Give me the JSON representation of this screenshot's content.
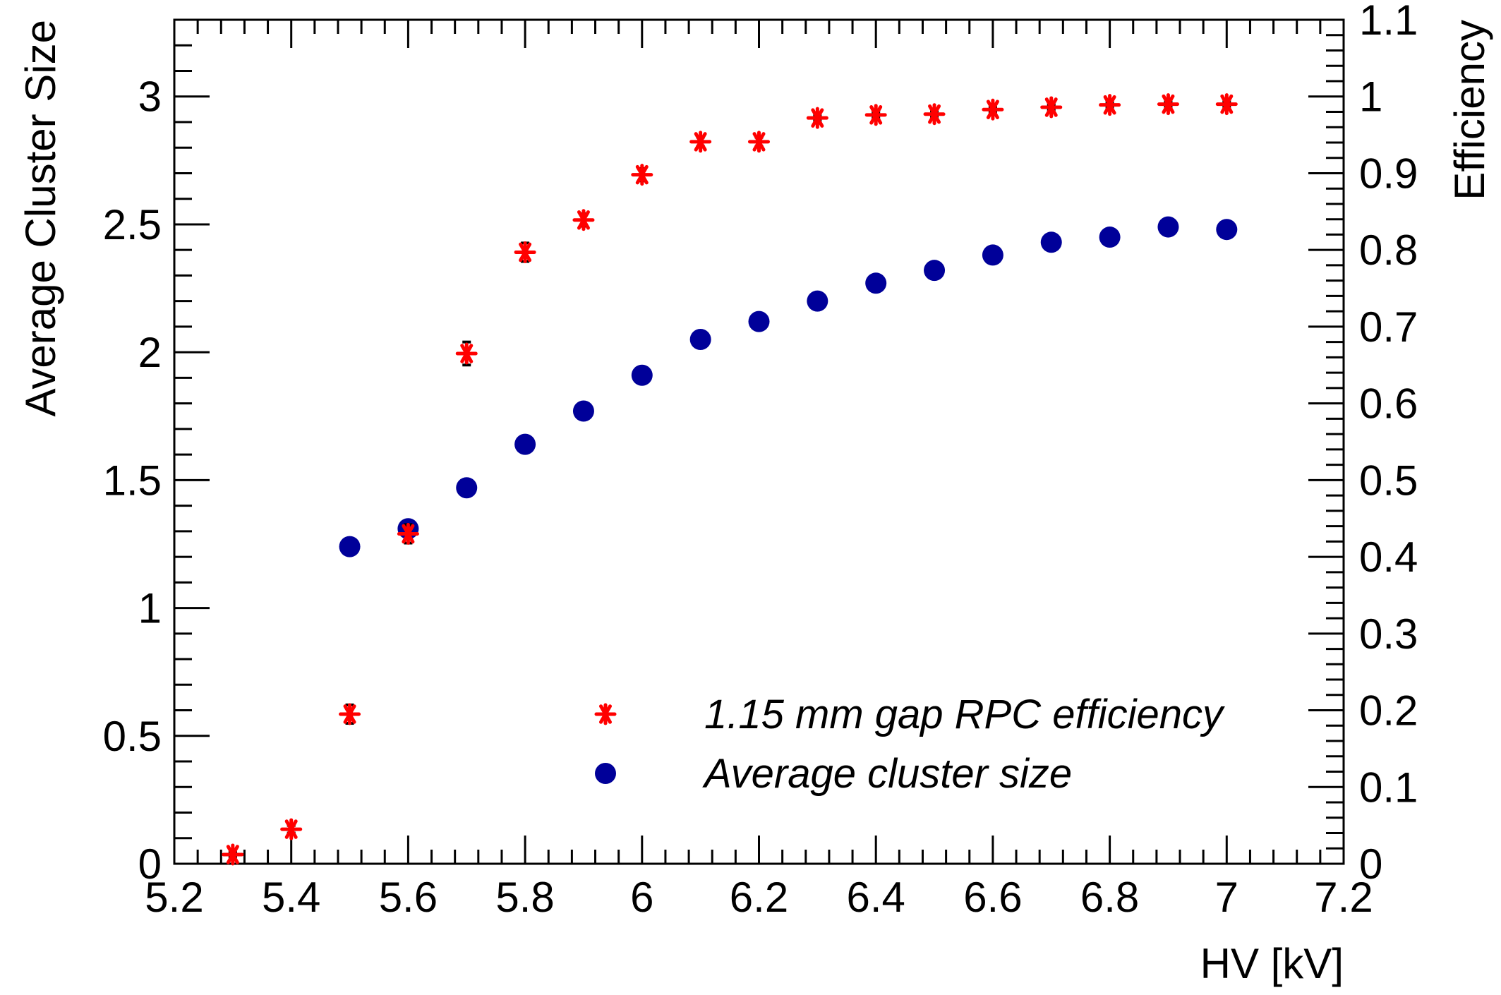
{
  "chart_data": {
    "type": "scatter",
    "title": "",
    "xlabel": "HV [kV]",
    "ylabel": "Average Cluster Size",
    "y2label": "Efficiency",
    "xlim": [
      5.2,
      7.2
    ],
    "ylim": [
      0,
      3.3
    ],
    "y2lim": [
      0,
      1.1
    ],
    "grid": false,
    "legend_position": "bottom-right",
    "x_ticks": [
      "5.2",
      "5.4",
      "5.6",
      "5.8",
      "6",
      "6.2",
      "6.4",
      "6.6",
      "6.8",
      "7",
      "7.2"
    ],
    "y_ticks": [
      "0",
      "0.5",
      "1",
      "1.5",
      "2",
      "2.5",
      "3"
    ],
    "y2_ticks": [
      "0",
      "0.1",
      "0.2",
      "0.3",
      "0.4",
      "0.5",
      "0.6",
      "0.7",
      "0.8",
      "0.9",
      "1",
      "1.1"
    ],
    "series": [
      {
        "name": "1.15 mm gap RPC efficiency",
        "axis": "right",
        "marker": "star",
        "color": "#ff0000",
        "x": [
          5.3,
          5.4,
          5.5,
          5.6,
          5.7,
          5.8,
          5.9,
          6.0,
          6.1,
          6.2,
          6.3,
          6.4,
          6.5,
          6.6,
          6.7,
          6.8,
          6.9,
          7.0
        ],
        "y": [
          0.012,
          0.045,
          0.195,
          0.43,
          0.665,
          0.797,
          0.839,
          0.898,
          0.941,
          0.941,
          0.972,
          0.976,
          0.977,
          0.983,
          0.986,
          0.989,
          0.99,
          0.99
        ],
        "yerr": [
          0.003,
          0.005,
          0.012,
          0.012,
          0.015,
          0.012,
          0.008,
          0.008,
          0.006,
          0.006,
          0.004,
          0.004,
          0.004,
          0.003,
          0.003,
          0.003,
          0.003,
          0.003
        ]
      },
      {
        "name": "Average cluster size",
        "axis": "left",
        "marker": "circle",
        "color": "#000099",
        "x": [
          5.5,
          5.6,
          5.7,
          5.8,
          5.9,
          6.0,
          6.1,
          6.2,
          6.3,
          6.4,
          6.5,
          6.6,
          6.7,
          6.8,
          6.9,
          7.0
        ],
        "y": [
          1.24,
          1.31,
          1.47,
          1.64,
          1.77,
          1.91,
          2.05,
          2.12,
          2.2,
          2.27,
          2.32,
          2.38,
          2.43,
          2.45,
          2.49,
          2.48
        ]
      }
    ]
  }
}
